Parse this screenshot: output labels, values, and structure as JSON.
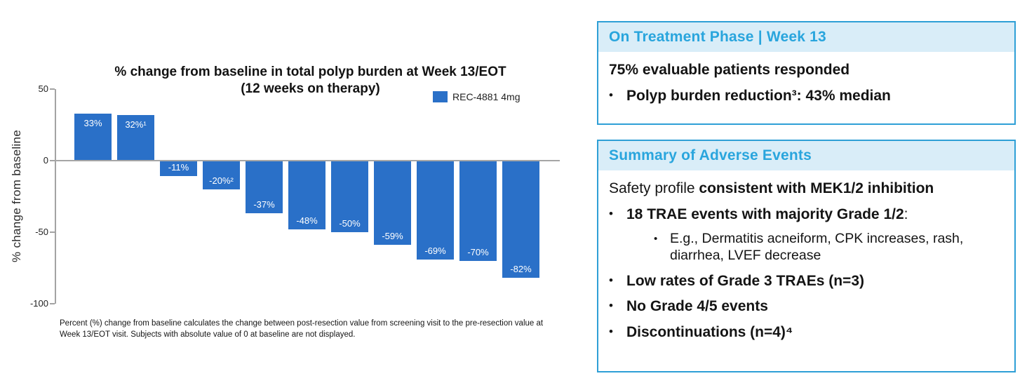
{
  "colors": {
    "bar": "#2a70c8",
    "accent": "#29a5dd",
    "panel_border": "#2e9fd6",
    "panel_header_bg": "#d9edf8",
    "axis": "#a6a6a6"
  },
  "chart_data": {
    "type": "bar",
    "title": "% change from baseline in total polyp burden at Week 13/EOT",
    "subtitle": "(12 weeks on therapy)",
    "legend": [
      {
        "label": "REC-4881 4mg",
        "color": "#2a70c8"
      }
    ],
    "ylabel": "% change from baseline",
    "xlabel": "",
    "ylim": [
      -100,
      50
    ],
    "yticks": [
      50,
      0,
      -50,
      -100
    ],
    "grid": false,
    "legend_position": "top-right",
    "bars": [
      {
        "value": 33,
        "label": "33%"
      },
      {
        "value": 32,
        "label": "32%¹"
      },
      {
        "value": -11,
        "label": "-11%"
      },
      {
        "value": -20,
        "label": "-20%²"
      },
      {
        "value": -37,
        "label": "-37%"
      },
      {
        "value": -48,
        "label": "-48%"
      },
      {
        "value": -50,
        "label": "-50%"
      },
      {
        "value": -59,
        "label": "-59%"
      },
      {
        "value": -69,
        "label": "-69%"
      },
      {
        "value": -70,
        "label": "-70%"
      },
      {
        "value": -82,
        "label": "-82%"
      }
    ],
    "footnote": "Percent (%) change from baseline calculates the change between post-resection value from screening visit to the pre-resection value at Week 13/EOT visit. Subjects with absolute value of 0 at baseline are not displayed."
  },
  "panels": [
    {
      "header": "On Treatment Phase | Week 13",
      "items": [
        {
          "type": "para",
          "segments": [
            {
              "t": "75% evaluable patients responded",
              "b": true
            }
          ]
        },
        {
          "type": "bullet",
          "segments": [
            {
              "t": "Polyp burden reduction³: 43% median",
              "b": true
            }
          ]
        }
      ]
    },
    {
      "header": "Summary of Adverse Events",
      "items": [
        {
          "type": "para",
          "segments": [
            {
              "t": "Safety profile ",
              "b": false
            },
            {
              "t": "consistent with MEK1/2 inhibition",
              "b": true
            }
          ]
        },
        {
          "type": "bullet",
          "segments": [
            {
              "t": "18 TRAE events with majority Grade 1/2",
              "b": true
            },
            {
              "t": ":",
              "b": false
            }
          ]
        },
        {
          "type": "subbullet",
          "segments": [
            {
              "t": "E.g., Dermatitis acneiform, CPK increases, rash, diarrhea, LVEF decrease",
              "b": false
            }
          ]
        },
        {
          "type": "bullet",
          "segments": [
            {
              "t": "Low rates of Grade 3 TRAEs (n=3)",
              "b": true
            }
          ]
        },
        {
          "type": "bullet",
          "segments": [
            {
              "t": "No Grade 4/5 events",
              "b": true
            }
          ]
        },
        {
          "type": "bullet",
          "segments": [
            {
              "t": "Discontinuations (n=4)⁴",
              "b": true
            }
          ]
        }
      ]
    }
  ]
}
